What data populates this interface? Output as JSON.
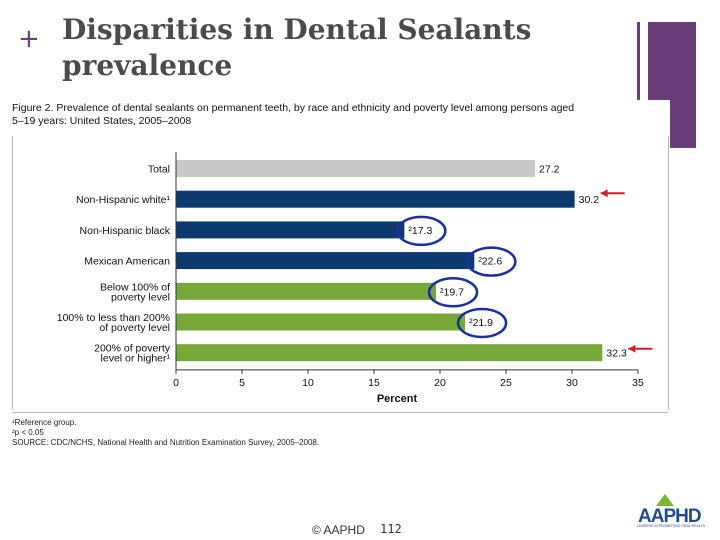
{
  "slide": {
    "plus": "+",
    "title_line1": "Disparities in Dental Sealants",
    "title_line2": "prevalence",
    "footer_copyright": "© AAPHD",
    "footer_page": "112"
  },
  "logo": {
    "text": "AAPHD",
    "sub": "LEADERS IN PROMOTING ORAL HEALTH"
  },
  "figure": {
    "caption_line1": "Figure 2. Prevalence of dental sealants on permanent teeth, by race and ethnicity and poverty level among persons aged",
    "caption_line2": "5–19 years: United States, 2005–2008",
    "footnote1": "¹Reference group.",
    "footnote2": "²p < 0.05",
    "source": "SOURCE: CDC/NCHS, National Health and Nutrition Examination Survey, 2005–2008."
  },
  "colors": {
    "total": "#c8c8c8",
    "race": "#0d3a6e",
    "poverty": "#78a83a",
    "circle": "#1a2fa0",
    "arrow": "#d42020",
    "accent": "#6a3d7a"
  },
  "chart_data": {
    "type": "bar",
    "orientation": "horizontal",
    "categories": [
      [
        "Total"
      ],
      [
        "Non-Hispanic white¹"
      ],
      [
        "Non-Hispanic black"
      ],
      [
        "Mexican American"
      ],
      [
        "Below 100% of",
        "poverty level"
      ],
      [
        "100% to less than 200%",
        "of poverty level"
      ],
      [
        "200% of poverty",
        "level or higher¹"
      ]
    ],
    "values": [
      27.2,
      30.2,
      17.3,
      22.6,
      19.7,
      21.9,
      32.3
    ],
    "value_labels": [
      "27.2",
      "30.2",
      "²17.3",
      "²22.6",
      "²19.7",
      "²21.9",
      "32.3"
    ],
    "groups": [
      "total",
      "race",
      "race",
      "race",
      "poverty",
      "poverty",
      "poverty"
    ],
    "circled": [
      false,
      false,
      true,
      true,
      true,
      true,
      false
    ],
    "arrowed": [
      false,
      true,
      false,
      false,
      false,
      false,
      true
    ],
    "xlabel": "Percent",
    "xlim": [
      0,
      35
    ],
    "xticks": [
      0,
      5,
      10,
      15,
      20,
      25,
      30,
      35
    ],
    "grid": false
  }
}
